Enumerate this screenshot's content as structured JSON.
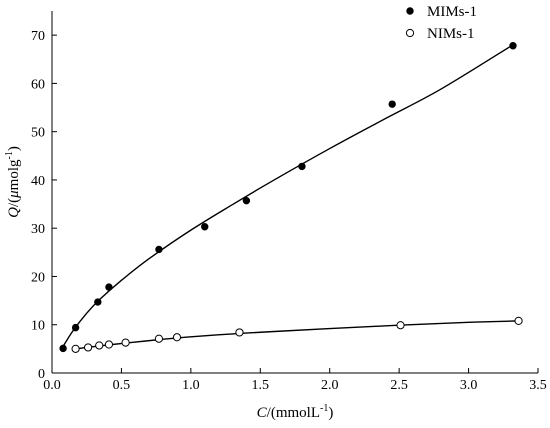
{
  "chart_data": {
    "type": "scatter",
    "title": "",
    "xlabel": {
      "var": "C",
      "rest": "/(mmolL",
      "sup": "-1",
      "close": ")"
    },
    "ylabel": {
      "var": "Q",
      "rest_before_mu": "/(",
      "mu": "μ",
      "rest_after_mu": "molg",
      "sup": "-1",
      "close": ")"
    },
    "xlim": [
      0,
      3.5
    ],
    "ylim": [
      0,
      75
    ],
    "xticks": [
      0,
      0.5,
      1.0,
      1.5,
      2.0,
      2.5,
      3.0,
      3.5
    ],
    "xtick_labels": [
      "0.0",
      "0.5",
      "1.0",
      "1.5",
      "2.0",
      "2.5",
      "3.0",
      "3.5"
    ],
    "yticks": [
      0,
      10,
      20,
      30,
      40,
      50,
      60,
      70
    ],
    "ytick_labels": [
      "0",
      "10",
      "20",
      "30",
      "40",
      "50",
      "60",
      "70"
    ],
    "grid": false,
    "legend_position": "top-right",
    "series": [
      {
        "name": "MIMs-1",
        "marker": "filled-circle",
        "color": "#000000",
        "x": [
          0.08,
          0.17,
          0.33,
          0.41,
          0.77,
          1.1,
          1.4,
          1.8,
          2.45,
          3.32
        ],
        "y": [
          5.1,
          9.4,
          14.7,
          17.8,
          25.6,
          30.3,
          35.7,
          42.8,
          55.7,
          67.8
        ],
        "fit": {
          "x": [
            0.08,
            0.15,
            0.25,
            0.35,
            0.5,
            0.7,
            1.0,
            1.3,
            1.6,
            2.0,
            2.4,
            2.8,
            3.32
          ],
          "y": [
            5.5,
            8.7,
            12.4,
            15.4,
            19.2,
            23.7,
            29.6,
            34.9,
            40.0,
            46.5,
            52.7,
            58.8,
            68.0
          ]
        }
      },
      {
        "name": "NIMs-1",
        "marker": "open-circle",
        "color": "#000000",
        "x": [
          0.17,
          0.26,
          0.34,
          0.41,
          0.53,
          0.77,
          0.9,
          1.35,
          2.51,
          3.36
        ],
        "y": [
          5.0,
          5.3,
          5.7,
          5.9,
          6.3,
          7.1,
          7.4,
          8.4,
          9.9,
          10.8
        ],
        "fit": {
          "x": [
            0.15,
            0.25,
            0.4,
            0.6,
            0.8,
            1.0,
            1.3,
            1.6,
            2.0,
            2.5,
            3.0,
            3.36
          ],
          "y": [
            4.9,
            5.3,
            5.8,
            6.4,
            7.0,
            7.5,
            8.1,
            8.6,
            9.2,
            9.9,
            10.5,
            10.8
          ]
        }
      }
    ]
  }
}
